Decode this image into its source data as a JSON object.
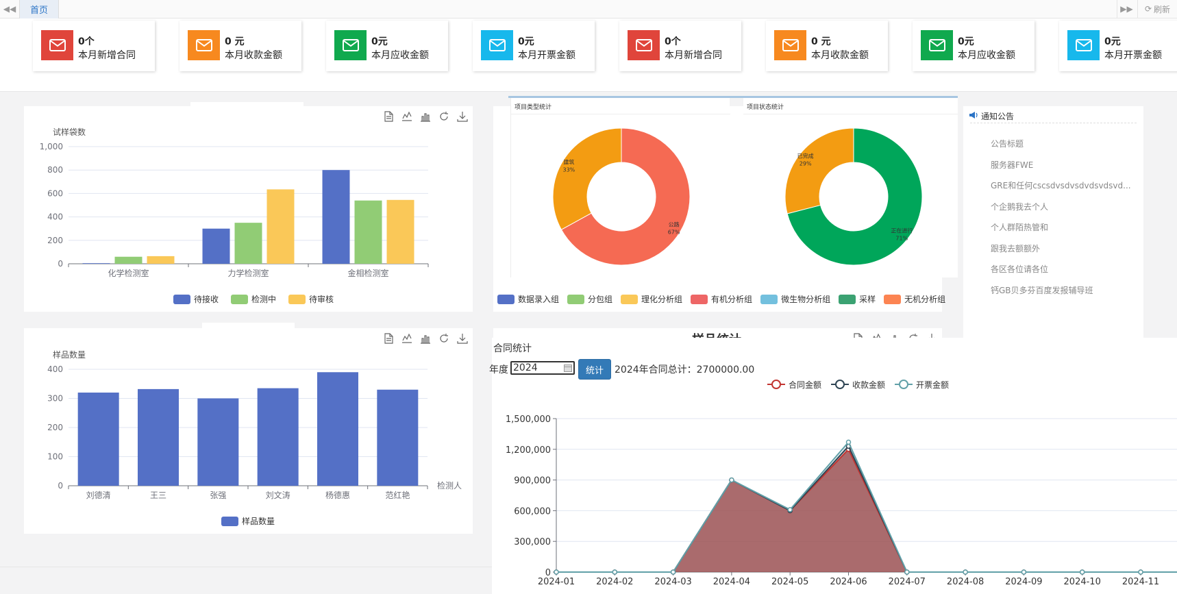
{
  "tabs": {
    "home": "首页",
    "refresh": "刷新"
  },
  "stats": [
    {
      "value": "0个",
      "label": "本月新增合同",
      "color": "#e0453b"
    },
    {
      "value": "0 元",
      "label": "本月收款金额",
      "color": "#f7891f"
    },
    {
      "value": "0元",
      "label": "本月应收金额",
      "color": "#10a94e"
    },
    {
      "value": "0元",
      "label": "本月开票金额",
      "color": "#17b8ec"
    },
    {
      "value": "0个",
      "label": "本月新增合同",
      "color": "#e0453b"
    },
    {
      "value": "0 元",
      "label": "本月收款金额",
      "color": "#f7891f"
    },
    {
      "value": "0元",
      "label": "本月应收金额",
      "color": "#10a94e"
    },
    {
      "value": "0元",
      "label": "本月开票金额",
      "color": "#17b8ec"
    }
  ],
  "notice": {
    "title": "通知公告",
    "items": [
      "公告标题",
      "服务器FWE",
      "GRE和任何cscsdvsdvsdvdsvdsvd...",
      "个企鹅我去个人",
      "个人群陌热管和",
      "跟我去额额外",
      "各区各位请各位",
      "钙GB贝多芬百度发报辅导班"
    ]
  },
  "contract": {
    "title": "合同统计",
    "year_label": "年度",
    "year_value": "2024",
    "button": "统计",
    "summary": "2024年合同总计：2700000.00"
  },
  "sample_stats_title": "样品统计",
  "chart_data": [
    {
      "type": "bar",
      "ylabel": "试样袋数",
      "categories": [
        "化学检测室",
        "力学检测室",
        "金相检测室"
      ],
      "ylim": [
        0,
        1000
      ],
      "yticks": [
        "0",
        "200",
        "400",
        "600",
        "800",
        "1,000"
      ],
      "series": [
        {
          "name": "待接收",
          "values": [
            5,
            300,
            800
          ],
          "color": "#5470c6"
        },
        {
          "name": "检测中",
          "values": [
            60,
            350,
            540
          ],
          "color": "#91cc75"
        },
        {
          "name": "待审核",
          "values": [
            65,
            635,
            545
          ],
          "color": "#fac858"
        }
      ]
    },
    {
      "type": "bar",
      "ylabel": "样品数量",
      "xlabel": "检测人",
      "categories": [
        "刘德清",
        "王三",
        "张强",
        "刘文涛",
        "杨德惠",
        "范红艳"
      ],
      "ylim": [
        0,
        400
      ],
      "yticks": [
        "0",
        "100",
        "200",
        "300",
        "400"
      ],
      "series": [
        {
          "name": "样品数量",
          "values": [
            320,
            332,
            300,
            335,
            390,
            330
          ],
          "color": "#5470c6"
        }
      ]
    },
    {
      "type": "pie",
      "title": "项目类型统计",
      "slices": [
        {
          "name": "公路",
          "value": 67,
          "label": "67%",
          "color": "#f56a53"
        },
        {
          "name": "建筑",
          "value": 33,
          "label": "33%",
          "color": "#f39c12"
        }
      ]
    },
    {
      "type": "pie",
      "title": "项目状态统计",
      "slices": [
        {
          "name": "正在进行",
          "value": 71,
          "label": "71%",
          "color": "#00a65a"
        },
        {
          "name": "已完成",
          "value": 29,
          "label": "29%",
          "color": "#f39c12"
        }
      ]
    },
    {
      "type": "legend",
      "entries": [
        {
          "name": "数据录入组",
          "color": "#5470c6"
        },
        {
          "name": "分包组",
          "color": "#91cc75"
        },
        {
          "name": "理化分析组",
          "color": "#fac858"
        },
        {
          "name": "有机分析组",
          "color": "#ee6666"
        },
        {
          "name": "微生物分析组",
          "color": "#73c0de"
        },
        {
          "name": "采样",
          "color": "#3ba272"
        },
        {
          "name": "无机分析组",
          "color": "#fc8452"
        }
      ]
    },
    {
      "type": "area",
      "x": [
        "2024-01",
        "2024-02",
        "2024-03",
        "2024-04",
        "2024-05",
        "2024-06",
        "2024-07",
        "2024-08",
        "2024-09",
        "2024-10",
        "2024-11",
        "2024-12"
      ],
      "ylim": [
        0,
        1500000
      ],
      "yticks": [
        "0",
        "300,000",
        "600,000",
        "900,000",
        "1,200,000",
        "1,500,000"
      ],
      "series": [
        {
          "name": "合同金额",
          "values": [
            0,
            0,
            0,
            900000,
            600000,
            1200000,
            0,
            0,
            0,
            0,
            0,
            0
          ],
          "color": "#c23531"
        },
        {
          "name": "收款金额",
          "values": [
            0,
            0,
            0,
            900000,
            600000,
            1230000,
            0,
            0,
            0,
            0,
            0,
            0
          ],
          "color": "#2f4554"
        },
        {
          "name": "开票金额",
          "values": [
            0,
            0,
            0,
            900000,
            610000,
            1270000,
            0,
            0,
            0,
            0,
            0,
            0
          ],
          "color": "#61a0a8"
        }
      ]
    }
  ]
}
